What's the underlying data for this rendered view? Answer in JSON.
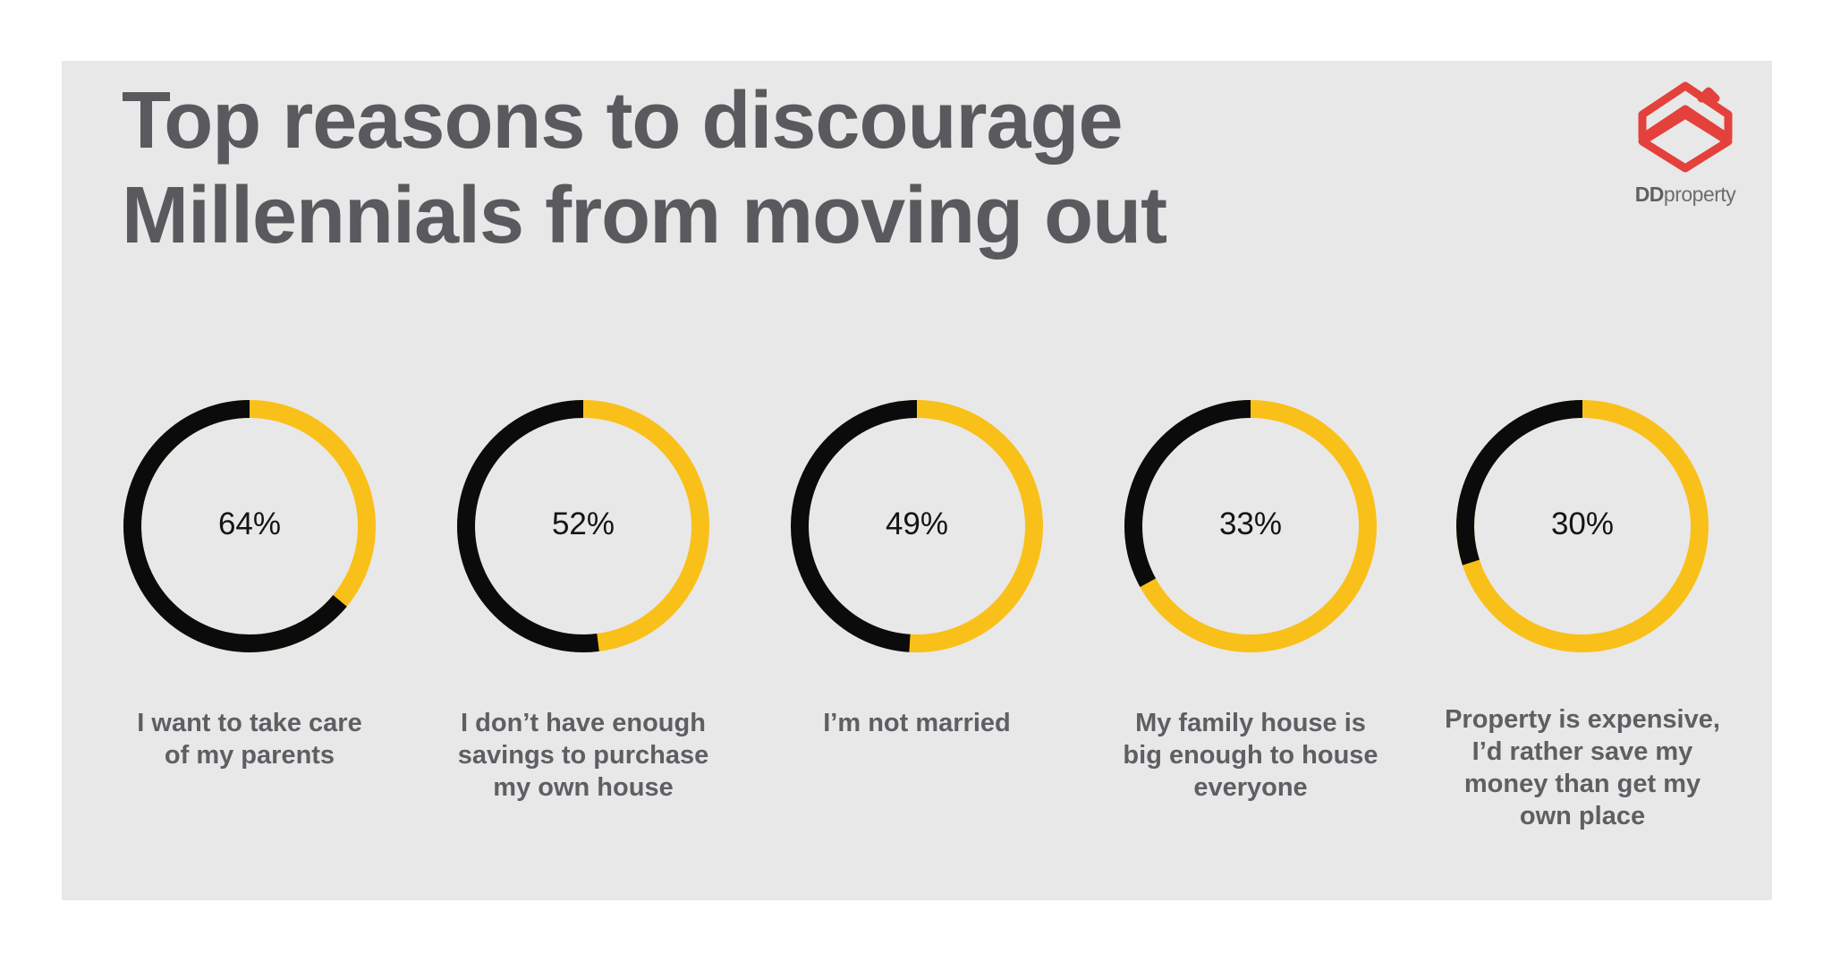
{
  "title": {
    "line1": "Top reasons to discourage",
    "line2": "Millennials from moving out"
  },
  "logo": {
    "icon": "ddproperty-house-logo-icon",
    "text_bold": "DD",
    "text_rest": "property"
  },
  "colors": {
    "value_arc": "#0b0b0b",
    "remainder_arc": "#f9c01a",
    "panel": "#e8e8e8",
    "text": "#5a595e",
    "brand": "#e4413c"
  },
  "chart_data": {
    "type": "pie",
    "variant": "donut",
    "categories": [
      "I want to take care of my parents",
      "I don’t have enough savings to purchase my own house",
      "I’m not married",
      "My family house is big enough to house everyone",
      "Property is expensive, I’d rather save my money than get my own place"
    ],
    "values": [
      64,
      52,
      49,
      33,
      30
    ],
    "value_labels": [
      "64%",
      "52%",
      "49%",
      "33%",
      "30%"
    ],
    "label_lines": [
      [
        "I want to take care",
        "of my parents"
      ],
      [
        "I don’t have enough",
        "savings to purchase",
        "my own house"
      ],
      [
        "I’m not married"
      ],
      [
        "My family house is",
        "big enough to house",
        "everyone"
      ],
      [
        "Property is expensive,",
        "I’d rather save my",
        "money than get my",
        "own place"
      ]
    ],
    "max": 100
  }
}
